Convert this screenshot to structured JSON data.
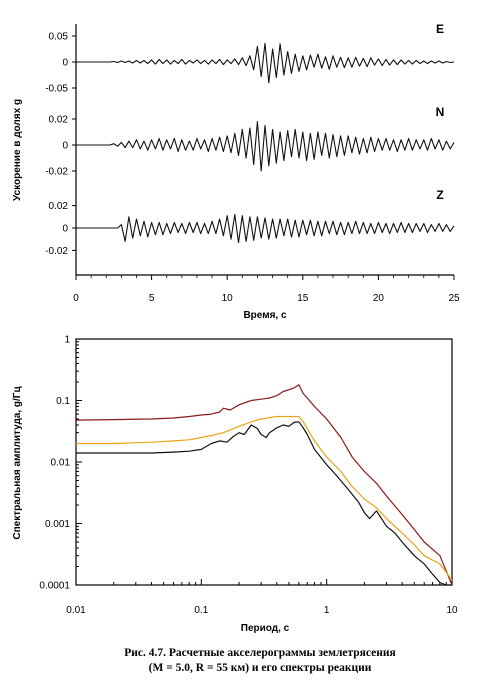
{
  "caption": {
    "line1": "Рис. 4.7. Расчетные акселерограммы землетрясения",
    "line2": "(M = 5.0, R = 55 км) и его спектры реакции"
  },
  "chart_data": [
    {
      "type": "line",
      "xlabel": "Время, с",
      "ylabel": "Ускорение в долях g",
      "xlim": [
        0,
        25
      ],
      "xticks": [
        "0",
        "5",
        "10",
        "15",
        "20",
        "25"
      ],
      "grid": false,
      "series": [
        {
          "name": "E",
          "yticks": [
            "0.05",
            "0",
            "-0.05"
          ],
          "ylim": [
            -0.05,
            0.05
          ],
          "values": [
            0,
            0,
            0,
            0,
            0,
            0,
            0,
            0,
            0,
            0,
            0.001,
            -0.001,
            0.002,
            -0.001,
            0.002,
            -0.002,
            0.003,
            -0.002,
            0.003,
            -0.003,
            0.004,
            -0.004,
            0.005,
            -0.003,
            0.004,
            -0.004,
            0.003,
            -0.003,
            0.005,
            -0.004,
            0.003,
            -0.002,
            0.004,
            -0.003,
            0.003,
            -0.004,
            0.004,
            -0.003,
            0.005,
            -0.005,
            0.004,
            -0.003,
            0.006,
            -0.005,
            0.008,
            -0.007,
            0.012,
            -0.015,
            0.03,
            -0.028,
            0.036,
            -0.04,
            0.025,
            -0.03,
            0.035,
            -0.025,
            0.02,
            -0.022,
            0.015,
            -0.018,
            0.012,
            -0.015,
            0.013,
            -0.01,
            0.015,
            -0.012,
            0.01,
            -0.014,
            0.012,
            -0.01,
            0.009,
            -0.011,
            0.008,
            -0.01,
            0.009,
            -0.008,
            0.007,
            -0.009,
            0.008,
            -0.006,
            0.006,
            -0.007,
            0.005,
            -0.006,
            0.004,
            -0.005,
            0.004,
            -0.004,
            0.003,
            -0.004,
            0.003,
            -0.003,
            0.002,
            -0.003,
            0.002,
            -0.002,
            0.002,
            -0.002,
            0.001,
            -0.001,
            0
          ]
        },
        {
          "name": "N",
          "yticks": [
            "0.02",
            "0",
            "-0.02"
          ],
          "ylim": [
            -0.02,
            0.02
          ],
          "values": [
            0,
            0,
            0,
            0,
            0,
            0,
            0,
            0,
            0,
            0,
            0.001,
            -0.001,
            0.002,
            -0.002,
            0.003,
            -0.002,
            0.004,
            -0.003,
            0.003,
            -0.004,
            0.004,
            -0.003,
            0.005,
            -0.004,
            0.004,
            -0.003,
            0.005,
            -0.005,
            0.004,
            -0.004,
            0.003,
            -0.004,
            0.005,
            -0.003,
            0.004,
            -0.005,
            0.005,
            -0.004,
            0.006,
            -0.005,
            0.007,
            -0.006,
            0.009,
            -0.008,
            0.012,
            -0.01,
            0.013,
            -0.015,
            0.018,
            -0.02,
            0.015,
            -0.016,
            0.012,
            -0.014,
            0.01,
            -0.012,
            0.011,
            -0.009,
            0.012,
            -0.01,
            0.01,
            -0.012,
            0.009,
            -0.011,
            0.01,
            -0.008,
            0.009,
            -0.01,
            0.008,
            -0.009,
            0.007,
            -0.008,
            0.007,
            -0.006,
            0.006,
            -0.007,
            0.005,
            -0.006,
            0.006,
            -0.005,
            0.005,
            -0.004,
            0.005,
            -0.004,
            0.004,
            -0.005,
            0.004,
            -0.004,
            0.005,
            -0.004,
            0.004,
            -0.003,
            0.004,
            -0.004,
            0.005,
            -0.003,
            0.004,
            -0.004,
            0.003,
            -0.003,
            0.002
          ]
        },
        {
          "name": "Z",
          "yticks": [
            "0.02",
            "0",
            "-0.02"
          ],
          "ylim": [
            -0.025,
            0.025
          ],
          "values": [
            0,
            0,
            0,
            0,
            0,
            0,
            0,
            0,
            0,
            0,
            0,
            0,
            0.003,
            -0.012,
            0.01,
            -0.009,
            0.008,
            -0.007,
            0.006,
            -0.008,
            0.005,
            -0.006,
            0.005,
            -0.006,
            0.004,
            -0.005,
            0.005,
            -0.004,
            0.004,
            -0.005,
            0.005,
            -0.004,
            0.005,
            -0.005,
            0.004,
            -0.005,
            0.006,
            -0.005,
            0.008,
            -0.007,
            0.011,
            -0.01,
            0.012,
            -0.013,
            0.011,
            -0.012,
            0.01,
            -0.011,
            0.01,
            -0.009,
            0.009,
            -0.01,
            0.008,
            -0.009,
            0.008,
            -0.007,
            0.008,
            -0.008,
            0.007,
            -0.008,
            0.007,
            -0.006,
            0.007,
            -0.007,
            0.006,
            -0.007,
            0.006,
            -0.005,
            0.006,
            -0.006,
            0.005,
            -0.006,
            0.005,
            -0.005,
            0.006,
            -0.005,
            0.005,
            -0.005,
            0.004,
            -0.005,
            0.005,
            -0.004,
            0.004,
            -0.005,
            0.004,
            -0.004,
            0.005,
            -0.004,
            0.004,
            -0.004,
            0.004,
            -0.003,
            0.004,
            -0.004,
            0.003,
            -0.003,
            0.004,
            -0.003,
            0.003,
            -0.003,
            0.002
          ]
        }
      ]
    },
    {
      "type": "line",
      "xlabel": "Период, с",
      "ylabel": "Спектральная амплитуда, g/Гц",
      "xscale": "log",
      "yscale": "log",
      "xlim": [
        0.01,
        10
      ],
      "ylim": [
        0.0001,
        1
      ],
      "xticks": [
        "0.01",
        "0.1",
        "1",
        "10"
      ],
      "yticks": [
        "1",
        "0.1",
        "0.01",
        "0.001",
        "0.0001"
      ],
      "grid": false,
      "series": [
        {
          "color": "#8b1a1a",
          "x": [
            0.01,
            0.02,
            0.04,
            0.06,
            0.08,
            0.1,
            0.12,
            0.14,
            0.15,
            0.17,
            0.2,
            0.25,
            0.3,
            0.35,
            0.4,
            0.45,
            0.5,
            0.55,
            0.6,
            0.65,
            0.7,
            0.8,
            1,
            1.3,
            1.6,
            2,
            2.5,
            3,
            4,
            5,
            6,
            8,
            10
          ],
          "y": [
            0.048,
            0.049,
            0.05,
            0.052,
            0.055,
            0.058,
            0.06,
            0.065,
            0.075,
            0.07,
            0.085,
            0.1,
            0.105,
            0.11,
            0.12,
            0.14,
            0.15,
            0.16,
            0.18,
            0.13,
            0.11,
            0.08,
            0.05,
            0.025,
            0.012,
            0.007,
            0.0045,
            0.0028,
            0.0014,
            0.0008,
            0.0005,
            0.0003,
            0.0001
          ]
        },
        {
          "color": "#e8a317",
          "x": [
            0.01,
            0.02,
            0.04,
            0.06,
            0.08,
            0.1,
            0.12,
            0.15,
            0.2,
            0.25,
            0.3,
            0.4,
            0.5,
            0.6,
            0.65,
            0.7,
            0.8,
            1,
            1.3,
            1.6,
            2,
            2.5,
            3,
            4,
            5,
            6,
            8,
            10
          ],
          "y": [
            0.02,
            0.02,
            0.021,
            0.022,
            0.023,
            0.025,
            0.027,
            0.03,
            0.038,
            0.045,
            0.05,
            0.055,
            0.055,
            0.055,
            0.045,
            0.035,
            0.022,
            0.012,
            0.007,
            0.004,
            0.0025,
            0.0018,
            0.0012,
            0.0007,
            0.00045,
            0.0003,
            0.00022,
            0.00012
          ]
        },
        {
          "color": "#111111",
          "x": [
            0.01,
            0.02,
            0.04,
            0.06,
            0.08,
            0.1,
            0.12,
            0.14,
            0.16,
            0.18,
            0.2,
            0.22,
            0.25,
            0.28,
            0.3,
            0.33,
            0.35,
            0.4,
            0.45,
            0.5,
            0.55,
            0.6,
            0.65,
            0.7,
            0.8,
            1,
            1.2,
            1.5,
            1.8,
            2,
            2.2,
            2.5,
            3,
            3.5,
            4,
            5,
            6,
            7,
            8,
            9,
            10
          ],
          "y": [
            0.014,
            0.014,
            0.014,
            0.0145,
            0.015,
            0.016,
            0.02,
            0.022,
            0.021,
            0.026,
            0.03,
            0.028,
            0.04,
            0.035,
            0.028,
            0.025,
            0.03,
            0.036,
            0.04,
            0.038,
            0.044,
            0.045,
            0.036,
            0.028,
            0.016,
            0.009,
            0.006,
            0.0035,
            0.0022,
            0.0015,
            0.0012,
            0.0016,
            0.0009,
            0.0007,
            0.0005,
            0.0003,
            0.00022,
            0.00015,
            0.00011,
            0.0001,
            0.0001
          ]
        }
      ]
    }
  ]
}
